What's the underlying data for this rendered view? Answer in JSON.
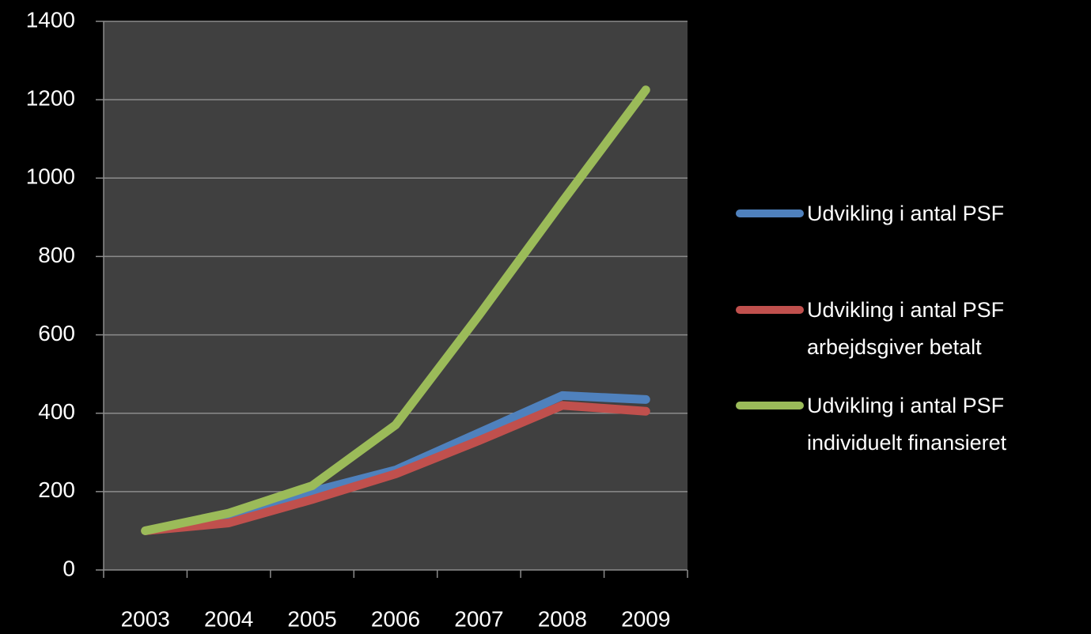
{
  "chart_data": {
    "type": "line",
    "categories": [
      "2003",
      "2004",
      "2005",
      "2006",
      "2007",
      "2008",
      "2009"
    ],
    "series": [
      {
        "name": "Udvikling i antal  PSF",
        "color": "#4f81bd",
        "values": [
          100,
          125,
          200,
          255,
          350,
          445,
          435
        ]
      },
      {
        "name": "Udvikling i antal  PSF arbejdsgiver betalt",
        "color": "#c0504d",
        "values": [
          100,
          120,
          180,
          245,
          330,
          420,
          405
        ]
      },
      {
        "name": "Udvikling i antal  PSF individuelt finansieret",
        "color": "#9bbb59",
        "values": [
          100,
          145,
          215,
          370,
          650,
          940,
          1225
        ]
      }
    ],
    "ylim": [
      0,
      1400
    ],
    "yticks": [
      0,
      200,
      400,
      600,
      800,
      1000,
      1200,
      1400
    ],
    "grid": true,
    "legend": "right"
  }
}
